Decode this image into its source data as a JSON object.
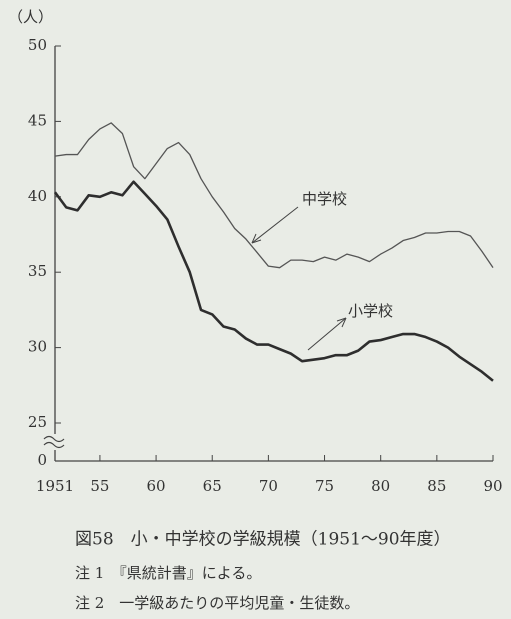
{
  "chart_data": {
    "type": "line",
    "y_label": "（人）",
    "x": [
      1951,
      1952,
      1953,
      1954,
      1955,
      1956,
      1957,
      1958,
      1959,
      1960,
      1961,
      1962,
      1963,
      1964,
      1965,
      1966,
      1967,
      1968,
      1969,
      1970,
      1971,
      1972,
      1973,
      1974,
      1975,
      1976,
      1977,
      1978,
      1979,
      1980,
      1981,
      1982,
      1983,
      1984,
      1985,
      1986,
      1987,
      1988,
      1989,
      1990
    ],
    "series": [
      {
        "name": "中学校",
        "color": "#555555",
        "values": [
          42.7,
          42.8,
          42.8,
          43.8,
          44.5,
          44.9,
          44.2,
          42.0,
          41.2,
          42.2,
          43.2,
          43.6,
          42.8,
          41.2,
          40.0,
          39.0,
          37.9,
          37.2,
          36.3,
          35.4,
          35.3,
          35.8,
          35.8,
          35.7,
          36.0,
          35.8,
          36.2,
          36.0,
          35.7,
          36.2,
          36.6,
          37.1,
          37.3,
          37.6,
          37.6,
          37.7,
          37.7,
          37.4,
          36.4,
          35.3
        ]
      },
      {
        "name": "小学校",
        "color": "#2e2e2e",
        "values": [
          40.3,
          39.3,
          39.1,
          40.1,
          40.0,
          40.3,
          40.1,
          41.0,
          40.2,
          39.4,
          38.5,
          36.7,
          35.0,
          32.5,
          32.2,
          31.4,
          31.2,
          30.6,
          30.2,
          30.2,
          29.9,
          29.6,
          29.1,
          29.2,
          29.3,
          29.5,
          29.5,
          29.8,
          30.4,
          30.5,
          30.7,
          30.9,
          30.9,
          30.7,
          30.4,
          30.0,
          29.4,
          28.9,
          28.4,
          27.8
        ]
      }
    ],
    "xlim": [
      1951,
      1990
    ],
    "xticks": [
      1951,
      {
        "value": 1955,
        "label": "55"
      },
      {
        "value": 1960,
        "label": "60"
      },
      {
        "value": 1965,
        "label": "65"
      },
      {
        "value": 1970,
        "label": "70"
      },
      {
        "value": 1975,
        "label": "75"
      },
      {
        "value": 1980,
        "label": "80"
      },
      {
        "value": 1985,
        "label": "85"
      },
      {
        "value": 1990,
        "label": "90"
      }
    ],
    "ylim": [
      0,
      50
    ],
    "y_break": [
      0,
      25
    ],
    "yticks": [
      0,
      25,
      30,
      35,
      40,
      45,
      50
    ],
    "caption": "図58　小・中学校の学級規模（1951～90年度）",
    "notes": [
      "注 1　『県統計書』による。",
      "注 2　一学級あたりの平均児童・生徒数。"
    ]
  }
}
